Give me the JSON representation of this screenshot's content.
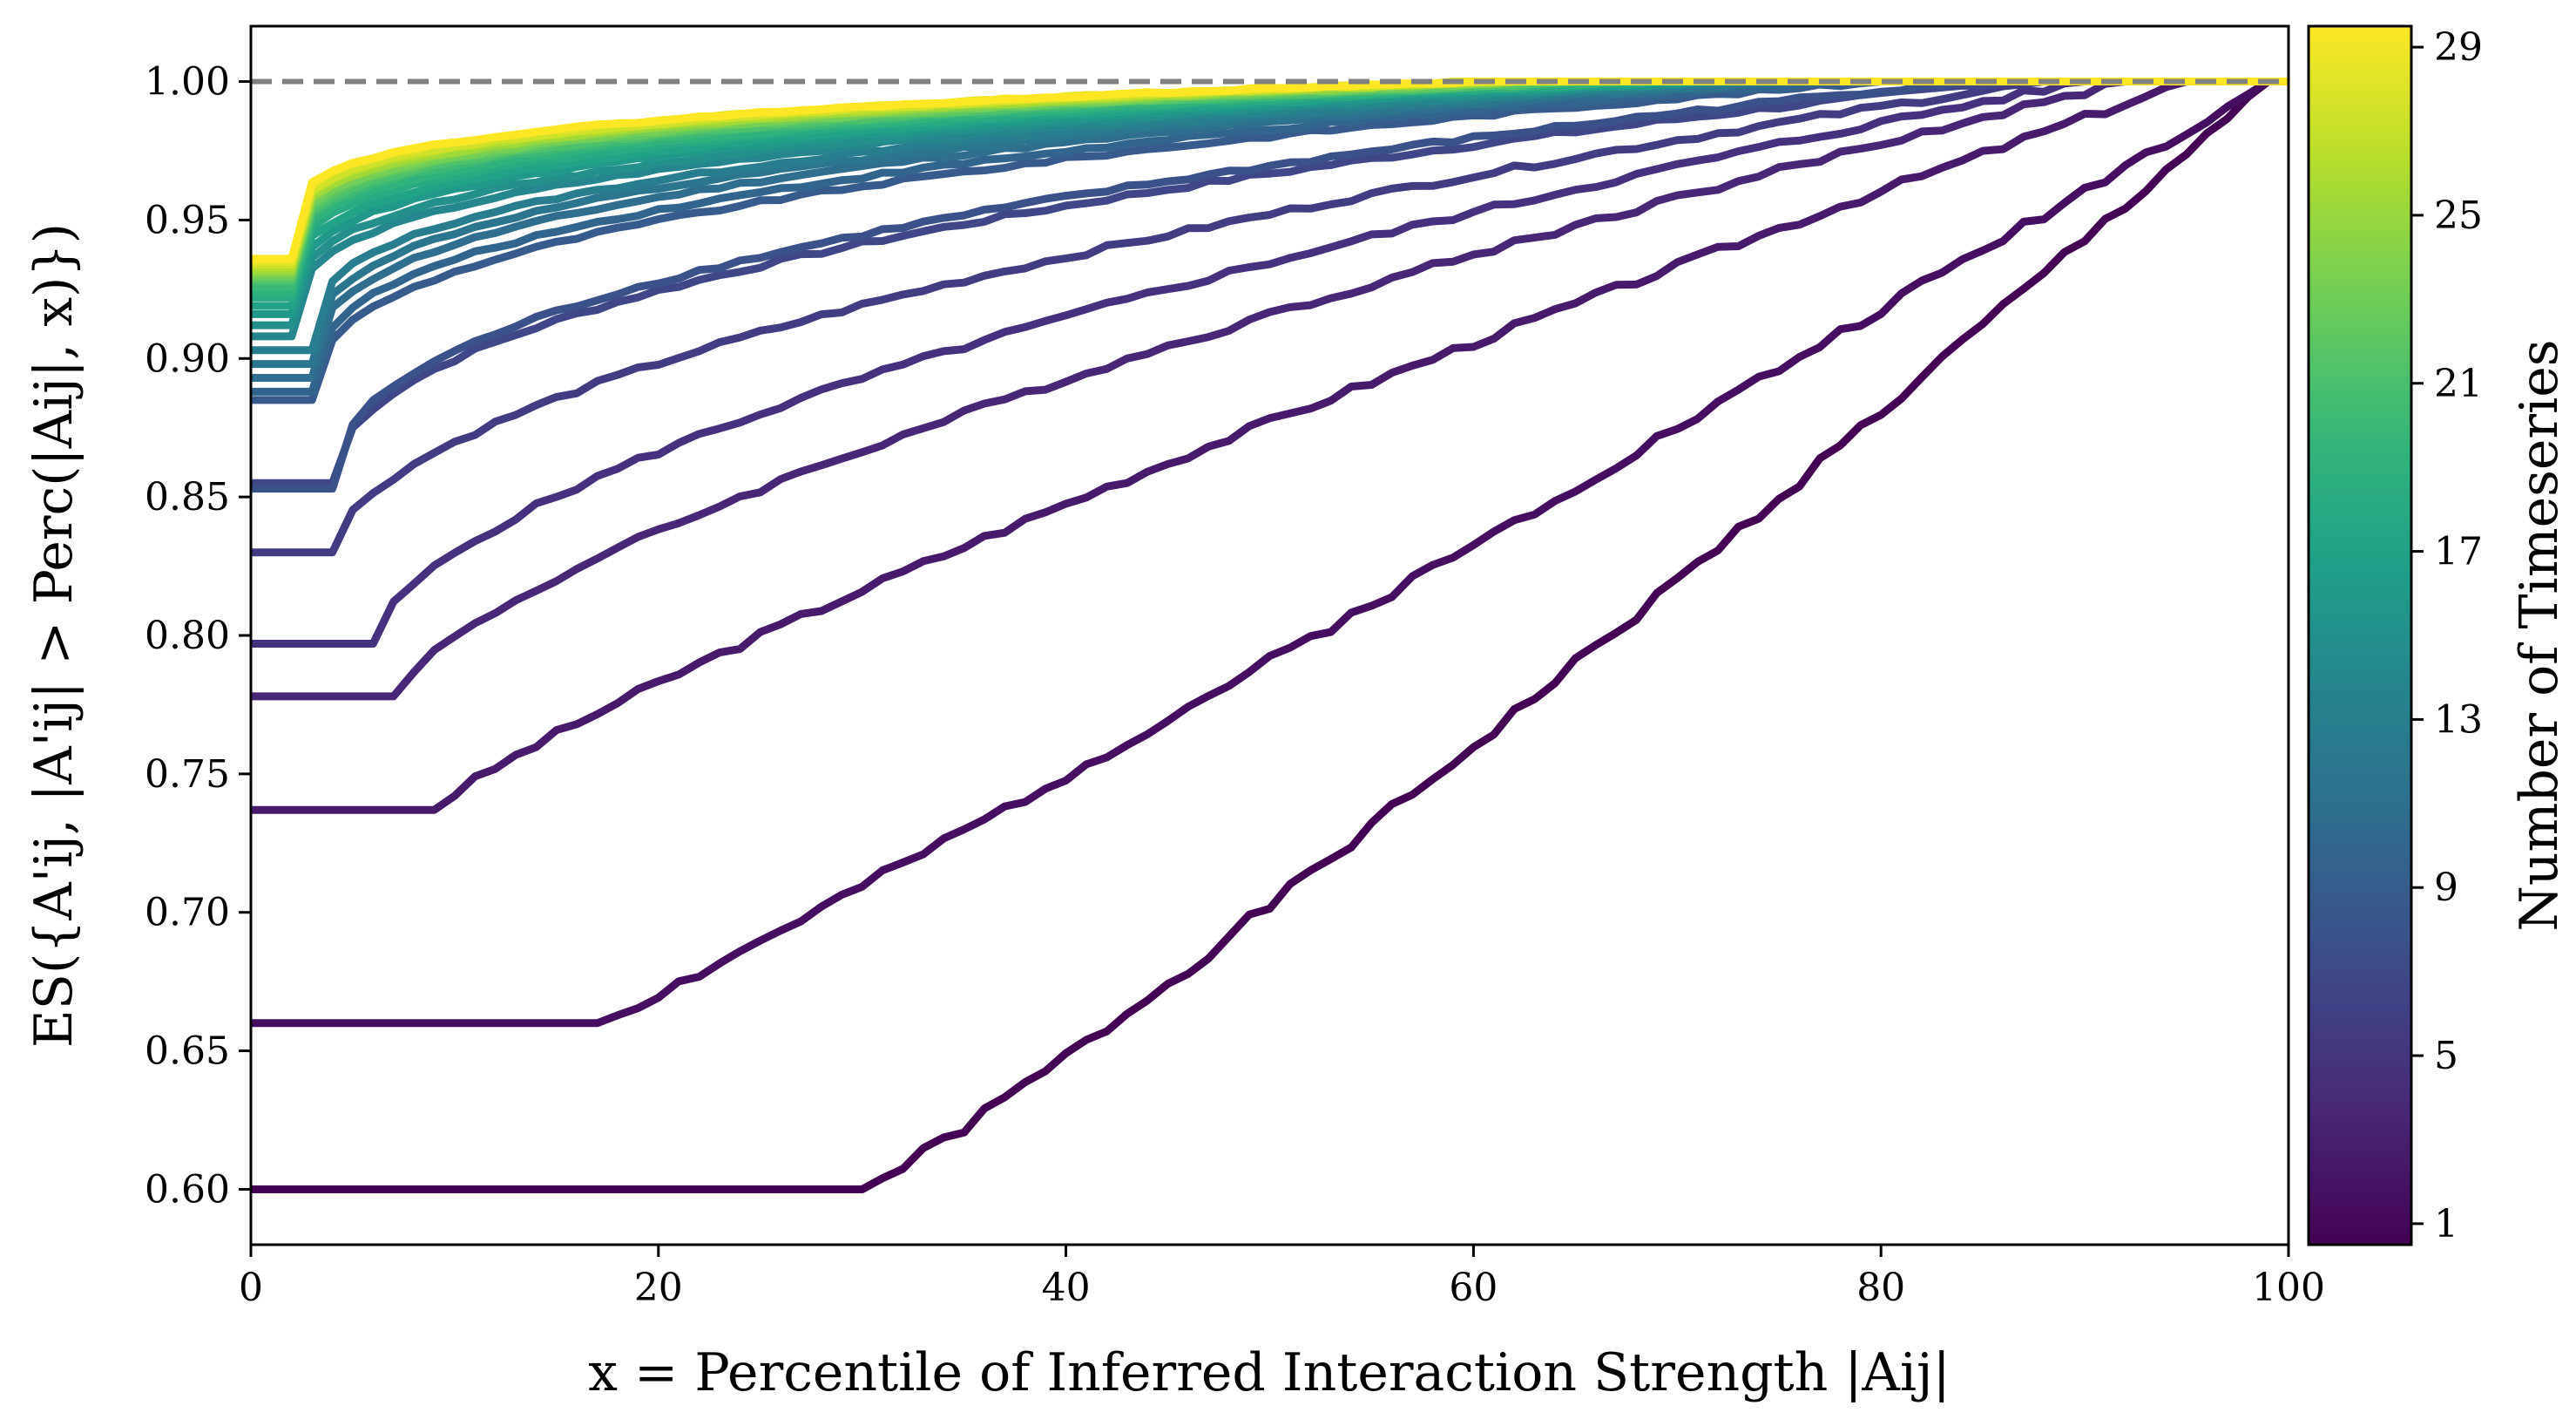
{
  "chart_data": {
    "type": "line",
    "xlabel": "x = Percentile of Inferred Interaction Strength |Aij|",
    "ylabel": "ES({A'ij, |A'ij| > Perc(|Aij|, x)})",
    "xlim": [
      0,
      100
    ],
    "ylim": [
      0.58,
      1.02
    ],
    "x_ticks": [
      "0",
      "20",
      "40",
      "60",
      "80",
      "100"
    ],
    "y_ticks": [
      "0.60",
      "0.65",
      "0.70",
      "0.75",
      "0.80",
      "0.85",
      "0.90",
      "0.95",
      "1.00"
    ],
    "reference_line": {
      "y": 1.0,
      "style": "dashed",
      "color": "#808080"
    },
    "grid": false,
    "colormap": "viridis",
    "colorbar": {
      "label": "Number of Timeseries",
      "range": [
        1,
        29
      ],
      "ticks": [
        "1",
        "5",
        "9",
        "13",
        "17",
        "21",
        "25",
        "29"
      ]
    },
    "series": [
      {
        "n": 1,
        "start": 0.6,
        "plateau_end": 30,
        "shape": 1.1,
        "x_end": 99
      },
      {
        "n": 2,
        "start": 0.66,
        "plateau_end": 17,
        "shape": 1.05,
        "x_end": 99
      },
      {
        "n": 3,
        "start": 0.737,
        "plateau_end": 9,
        "shape": 0.85,
        "x_end": 95
      },
      {
        "n": 4,
        "start": 0.778,
        "plateau_end": 7,
        "shape": 0.7,
        "x_end": 92
      },
      {
        "n": 5,
        "start": 0.797,
        "plateau_end": 6,
        "shape": 0.6,
        "x_end": 90
      },
      {
        "n": 6,
        "start": 0.83,
        "plateau_end": 4,
        "shape": 0.55,
        "x_end": 88
      },
      {
        "n": 7,
        "start": 0.855,
        "plateau_end": 4,
        "shape": 0.45,
        "x_end": 86
      },
      {
        "n": 8,
        "start": 0.853,
        "plateau_end": 4,
        "shape": 0.42,
        "x_end": 84
      },
      {
        "n": 9,
        "start": 0.885,
        "plateau_end": 3,
        "shape": 0.38,
        "x_end": 80
      },
      {
        "n": 10,
        "start": 0.888,
        "plateau_end": 3,
        "shape": 0.36,
        "x_end": 78
      },
      {
        "n": 11,
        "start": 0.893,
        "plateau_end": 3,
        "shape": 0.34,
        "x_end": 76
      },
      {
        "n": 12,
        "start": 0.898,
        "plateau_end": 3,
        "shape": 0.33,
        "x_end": 75
      },
      {
        "n": 13,
        "start": 0.903,
        "plateau_end": 3,
        "shape": 0.32,
        "x_end": 74
      },
      {
        "n": 14,
        "start": 0.908,
        "plateau_end": 2,
        "shape": 0.31,
        "x_end": 73
      },
      {
        "n": 15,
        "start": 0.912,
        "plateau_end": 2,
        "shape": 0.3,
        "x_end": 72
      },
      {
        "n": 16,
        "start": 0.916,
        "plateau_end": 2,
        "shape": 0.29,
        "x_end": 71
      },
      {
        "n": 17,
        "start": 0.919,
        "plateau_end": 2,
        "shape": 0.28,
        "x_end": 70
      },
      {
        "n": 18,
        "start": 0.922,
        "plateau_end": 2,
        "shape": 0.27,
        "x_end": 69
      },
      {
        "n": 19,
        "start": 0.924,
        "plateau_end": 2,
        "shape": 0.26,
        "x_end": 68
      },
      {
        "n": 20,
        "start": 0.926,
        "plateau_end": 2,
        "shape": 0.25,
        "x_end": 67
      },
      {
        "n": 21,
        "start": 0.928,
        "plateau_end": 2,
        "shape": 0.25,
        "x_end": 66
      },
      {
        "n": 22,
        "start": 0.929,
        "plateau_end": 2,
        "shape": 0.24,
        "x_end": 65
      },
      {
        "n": 23,
        "start": 0.93,
        "plateau_end": 2,
        "shape": 0.24,
        "x_end": 64
      },
      {
        "n": 24,
        "start": 0.931,
        "plateau_end": 2,
        "shape": 0.23,
        "x_end": 63
      },
      {
        "n": 25,
        "start": 0.932,
        "plateau_end": 2,
        "shape": 0.23,
        "x_end": 62
      },
      {
        "n": 26,
        "start": 0.933,
        "plateau_end": 2,
        "shape": 0.22,
        "x_end": 62
      },
      {
        "n": 27,
        "start": 0.934,
        "plateau_end": 2,
        "shape": 0.22,
        "x_end": 61
      },
      {
        "n": 28,
        "start": 0.935,
        "plateau_end": 2,
        "shape": 0.21,
        "x_end": 60
      },
      {
        "n": 29,
        "start": 0.936,
        "plateau_end": 2,
        "shape": 0.21,
        "x_end": 60
      }
    ]
  }
}
